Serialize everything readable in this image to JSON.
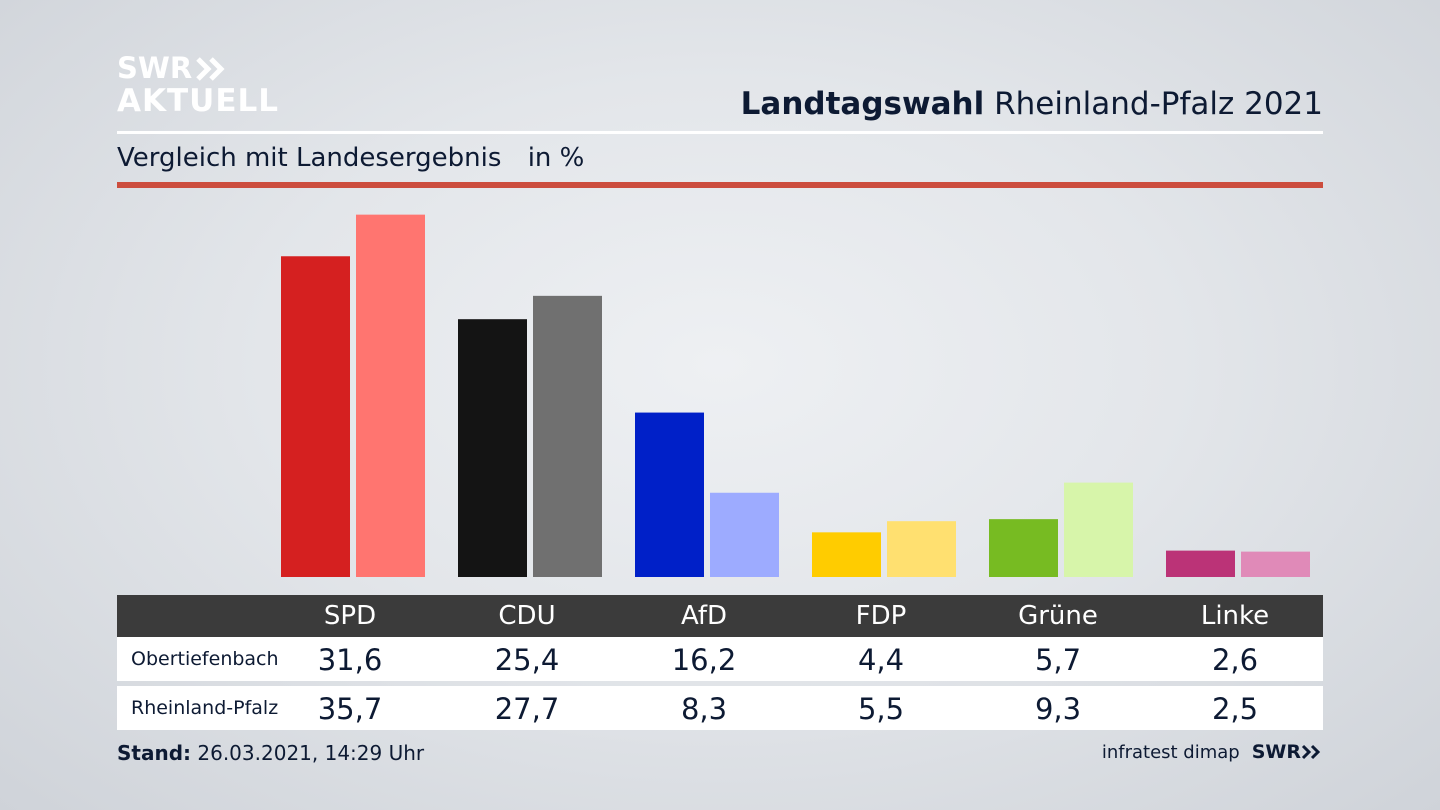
{
  "brand": {
    "line1": "SWR",
    "line2": "AKTUELL",
    "chevron_icon": "double-chevron-right-icon"
  },
  "header": {
    "title_bold": "Landtagswahl",
    "title_rest": "Rheinland-Pfalz 2021"
  },
  "subtitle": {
    "text": "Vergleich mit Landesergebnis",
    "unit": "in %"
  },
  "colors": {
    "accent_rule": "#cc4d3e",
    "table_header_bg": "#3b3b3b"
  },
  "chart_data": {
    "type": "bar",
    "title": "Vergleich mit Landesergebnis",
    "ylabel": "in %",
    "categories": [
      "SPD",
      "CDU",
      "AfD",
      "FDP",
      "Grüne",
      "Linke"
    ],
    "series": [
      {
        "name": "Obertiefenbach",
        "values": [
          31.6,
          25.4,
          16.2,
          4.4,
          5.7,
          2.6
        ],
        "labels": [
          "31,6",
          "25,4",
          "16,2",
          "4,4",
          "5,7",
          "2,6"
        ],
        "colors": [
          "#d52020",
          "#141414",
          "#0020c8",
          "#ffcc00",
          "#77bb22",
          "#bb3377"
        ]
      },
      {
        "name": "Rheinland-Pfalz",
        "values": [
          35.7,
          27.7,
          8.3,
          5.5,
          9.3,
          2.5
        ],
        "labels": [
          "35,7",
          "27,7",
          "8,3",
          "5,5",
          "9,3",
          "2,5"
        ],
        "colors": [
          "#ff7570",
          "#707070",
          "#9dabff",
          "#ffe070",
          "#d7f5aa",
          "#e08ab8"
        ]
      }
    ],
    "ylim": [
      0,
      40
    ],
    "grid": false,
    "legend": "table-below"
  },
  "footer": {
    "stand_label": "Stand:",
    "stand_value": "26.03.2021, 14:29 Uhr",
    "source": "infratest dimap",
    "source_brand": "SWR"
  }
}
